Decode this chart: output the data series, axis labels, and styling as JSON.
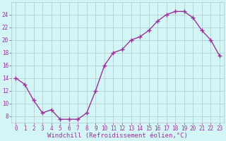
{
  "x": [
    0,
    1,
    2,
    3,
    4,
    5,
    6,
    7,
    8,
    9,
    10,
    11,
    12,
    13,
    14,
    15,
    16,
    17,
    18,
    19,
    20,
    21,
    22,
    23
  ],
  "y": [
    14,
    13,
    10.5,
    8.5,
    9,
    7.5,
    7.5,
    7.5,
    8.5,
    12,
    16,
    18,
    18.5,
    20,
    20.5,
    21.5,
    23,
    24,
    24.5,
    24.5,
    23.5,
    21.5,
    20,
    17.5
  ],
  "line_color": "#993399",
  "marker": "+",
  "marker_size": 4,
  "marker_lw": 1.0,
  "line_width": 1.0,
  "bg_color": "#d4f5f5",
  "grid_color": "#b0c8c8",
  "xlabel": "Windchill (Refroidissement éolien,°C)",
  "xlabel_color": "#993399",
  "yticks": [
    8,
    10,
    12,
    14,
    16,
    18,
    20,
    22,
    24
  ],
  "xlim": [
    -0.5,
    23.5
  ],
  "ylim": [
    7,
    26
  ],
  "tick_color": "#993399",
  "label_fontsize": 6.5,
  "tick_fontsize": 5.5
}
